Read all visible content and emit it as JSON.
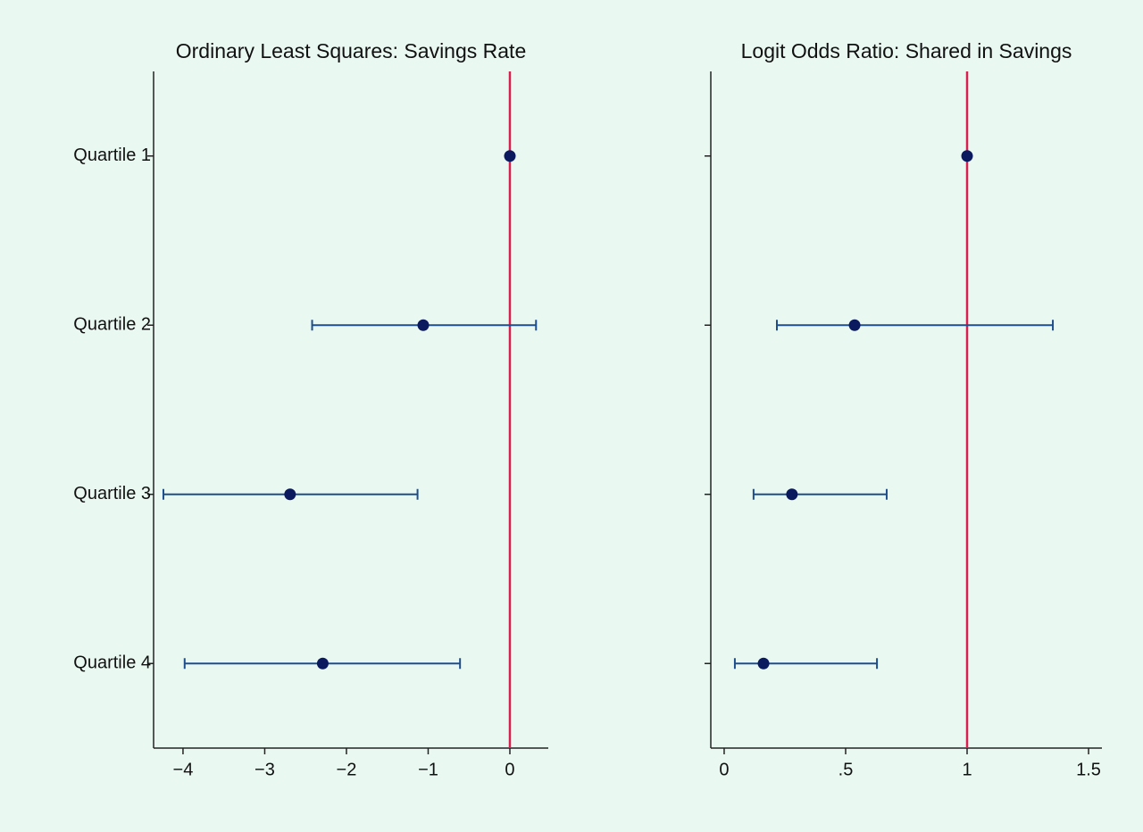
{
  "chart_data": [
    {
      "type": "errorbar",
      "title": "Ordinary Least Squares: Savings Rate",
      "categories": [
        "Quartile 1",
        "Quartile 2",
        "Quartile 3",
        "Quartile 4"
      ],
      "values": [
        0,
        -1.06,
        -2.69,
        -2.29
      ],
      "lower": [
        null,
        -2.42,
        -4.24,
        -3.98
      ],
      "upper": [
        null,
        0.32,
        -1.13,
        -0.61
      ],
      "color": "#0b1a5e",
      "bar_color": "#1f4e8c",
      "refline": 0,
      "refline_color": "#d81f50",
      "xlim": [
        -4.36,
        0.47
      ],
      "xticks": [
        {
          "value": -4,
          "label": "−4"
        },
        {
          "value": -3,
          "label": "−3"
        },
        {
          "value": -2,
          "label": "−2"
        },
        {
          "value": -1,
          "label": "−1"
        },
        0
      ]
    },
    {
      "type": "errorbar",
      "title": "Logit Odds Ratio: Shared in Savings",
      "values": [
        1,
        0.537,
        0.279,
        0.162
      ],
      "lower": [
        null,
        0.217,
        0.121,
        0.044
      ],
      "upper": [
        null,
        1.353,
        0.669,
        0.629
      ],
      "color": "#0b1a5e",
      "bar_color": "#1f4e8c",
      "refline": 1,
      "refline_color": "#d81f50",
      "xlim": [
        -0.055,
        1.555
      ],
      "xticks": [
        0,
        {
          "value": 0.5,
          "label": ".5"
        },
        1,
        1.5
      ]
    }
  ]
}
